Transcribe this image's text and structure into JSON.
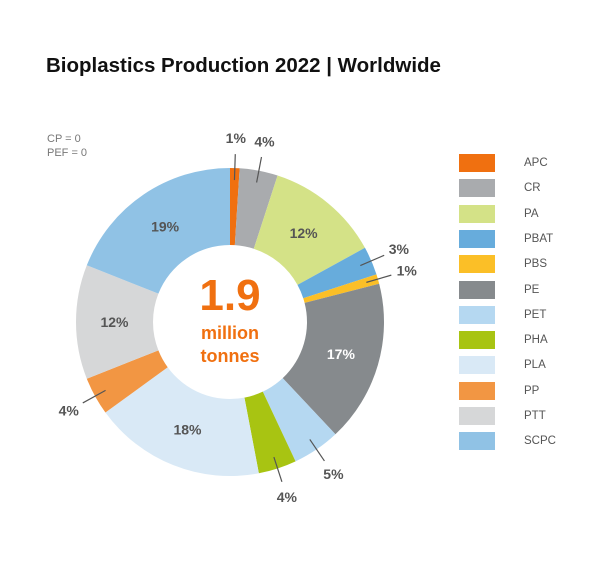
{
  "chart_data": {
    "type": "pie",
    "style": "donut",
    "title": "Bioplastics Production 2022 | Worldwide",
    "notes": [
      "CP = 0",
      "PEF = 0"
    ],
    "center_value": "1.9",
    "center_unit_line1": "million",
    "center_unit_line2": "tonnes",
    "center_color": "#f07010",
    "unit": "%",
    "legend_position": "right",
    "slices": [
      {
        "name": "APC",
        "value": 1,
        "label": "1%",
        "color": "#f07010"
      },
      {
        "name": "CR",
        "value": 4,
        "label": "4%",
        "color": "#a9abae"
      },
      {
        "name": "PA",
        "value": 12,
        "label": "12%",
        "color": "#d4e287"
      },
      {
        "name": "PBAT",
        "value": 3,
        "label": "3%",
        "color": "#67acdc"
      },
      {
        "name": "PBS",
        "value": 1,
        "label": "1%",
        "color": "#fbbf27"
      },
      {
        "name": "PE",
        "value": 17,
        "label": "17%",
        "color": "#868a8d"
      },
      {
        "name": "PET",
        "value": 5,
        "label": "5%",
        "color": "#b5d8f1"
      },
      {
        "name": "PHA",
        "value": 4,
        "label": "4%",
        "color": "#a8c412"
      },
      {
        "name": "PLA",
        "value": 18,
        "label": "18%",
        "color": "#d9e9f6"
      },
      {
        "name": "PP",
        "value": 4,
        "label": "4%",
        "color": "#f29643"
      },
      {
        "name": "PTT",
        "value": 12,
        "label": "12%",
        "color": "#d6d7d8"
      },
      {
        "name": "SCPC",
        "value": 19,
        "label": "19%",
        "color": "#90c2e5"
      }
    ]
  }
}
